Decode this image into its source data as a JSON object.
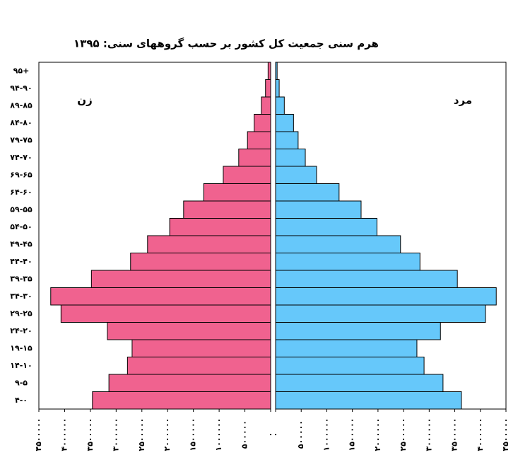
{
  "chart_data": {
    "type": "pyramid",
    "title": "هرم سنی جمعیت کل کشور بر حسب گروههای سنی: ۱۳۹۵",
    "categories": [
      "۴-۰",
      "۹-۵",
      "۱۴-۱۰",
      "۱۹-۱۵",
      "۲۴-۲۰",
      "۲۹-۲۵",
      "۳۴-۳۰",
      "۳۹-۳۵",
      "۴۴-۴۰",
      "۴۹-۴۵",
      "۵۴-۵۰",
      "۵۹-۵۵",
      "۶۴-۶۰",
      "۶۹-۶۵",
      "۷۴-۷۰",
      "۷۹-۷۵",
      "۸۴-۸۰",
      "۸۹-۸۵",
      "۹۴-۹۰",
      "۹۵+"
    ],
    "series": [
      {
        "name": "زن",
        "color": "#f0628f",
        "side": "left",
        "values": [
          3460000,
          3140000,
          2780000,
          2690000,
          3170000,
          4070000,
          4270000,
          3480000,
          2720000,
          2390000,
          1960000,
          1690000,
          1300000,
          920000,
          620000,
          450000,
          320000,
          180000,
          100000,
          50000
        ]
      },
      {
        "name": "مرد",
        "color": "#66c8fa",
        "side": "right",
        "values": [
          3630000,
          3270000,
          2900000,
          2760000,
          3220000,
          4100000,
          4310000,
          3550000,
          2820000,
          2440000,
          1980000,
          1670000,
          1240000,
          800000,
          580000,
          440000,
          350000,
          170000,
          70000,
          30000
        ]
      }
    ],
    "xlim": [
      0,
      4500000
    ],
    "xticks": [
      {
        "value": 0,
        "label": "۰"
      },
      {
        "value": 500000,
        "label": "۵۰۰۰۰۰"
      },
      {
        "value": 1000000,
        "label": "۱۰۰۰۰۰۰"
      },
      {
        "value": 1500000,
        "label": "۱۵۰۰۰۰۰"
      },
      {
        "value": 2000000,
        "label": "۲۰۰۰۰۰۰"
      },
      {
        "value": 2500000,
        "label": "۲۵۰۰۰۰۰"
      },
      {
        "value": 3000000,
        "label": "۳۰۰۰۰۰۰"
      },
      {
        "value": 3500000,
        "label": "۳۵۰۰۰۰۰"
      },
      {
        "value": 4000000,
        "label": "۴۰۰۰۰۰۰"
      },
      {
        "value": 4500000,
        "label": "۴۵۰۰۰۰۰"
      }
    ]
  }
}
